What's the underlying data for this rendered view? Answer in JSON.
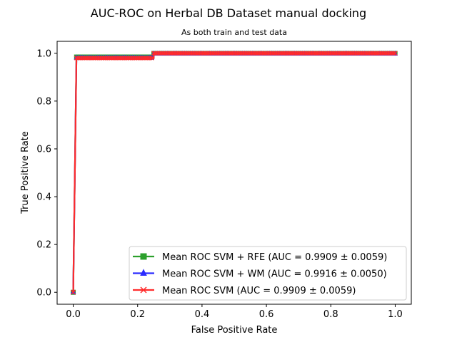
{
  "chart_data": {
    "type": "line",
    "title": "AUC-ROC on Herbal DB Dataset manual docking",
    "subtitle": "As both train and test data",
    "xlabel": "False Positive Rate",
    "ylabel": "True Positive Rate",
    "xlim": [
      -0.05,
      1.05
    ],
    "ylim": [
      -0.05,
      1.05
    ],
    "xticks": [
      0.0,
      0.2,
      0.4,
      0.6,
      0.8,
      1.0
    ],
    "yticks": [
      0.0,
      0.2,
      0.4,
      0.6,
      0.8,
      1.0
    ],
    "xtick_labels": [
      "0.0",
      "0.2",
      "0.4",
      "0.6",
      "0.8",
      "1.0"
    ],
    "ytick_labels": [
      "0.0",
      "0.2",
      "0.4",
      "0.6",
      "0.8",
      "1.0"
    ],
    "grid": false,
    "legend_position": "lower-right",
    "series": [
      {
        "name": "Mean ROC SVM + RFE (AUC = 0.9909 ± 0.0059)",
        "color": "#2ca02c",
        "marker": "square",
        "x": [
          0.0,
          0.01,
          0.25,
          1.0
        ],
        "y": [
          0.0,
          0.985,
          1.0,
          1.0
        ]
      },
      {
        "name": "Mean ROC SVM + WM (AUC = 0.9916 ± 0.0050)",
        "color": "#2b2bff",
        "marker": "triangle",
        "x": [
          0.0,
          0.01,
          0.25,
          1.0
        ],
        "y": [
          0.0,
          0.98,
          0.997,
          0.997
        ]
      },
      {
        "name": "Mean ROC SVM (AUC = 0.9909 ± 0.0059)",
        "color": "#ff2b2b",
        "marker": "x",
        "x": [
          0.0,
          0.01,
          0.25,
          1.0
        ],
        "y": [
          0.0,
          0.98,
          1.0,
          1.0
        ]
      }
    ]
  }
}
